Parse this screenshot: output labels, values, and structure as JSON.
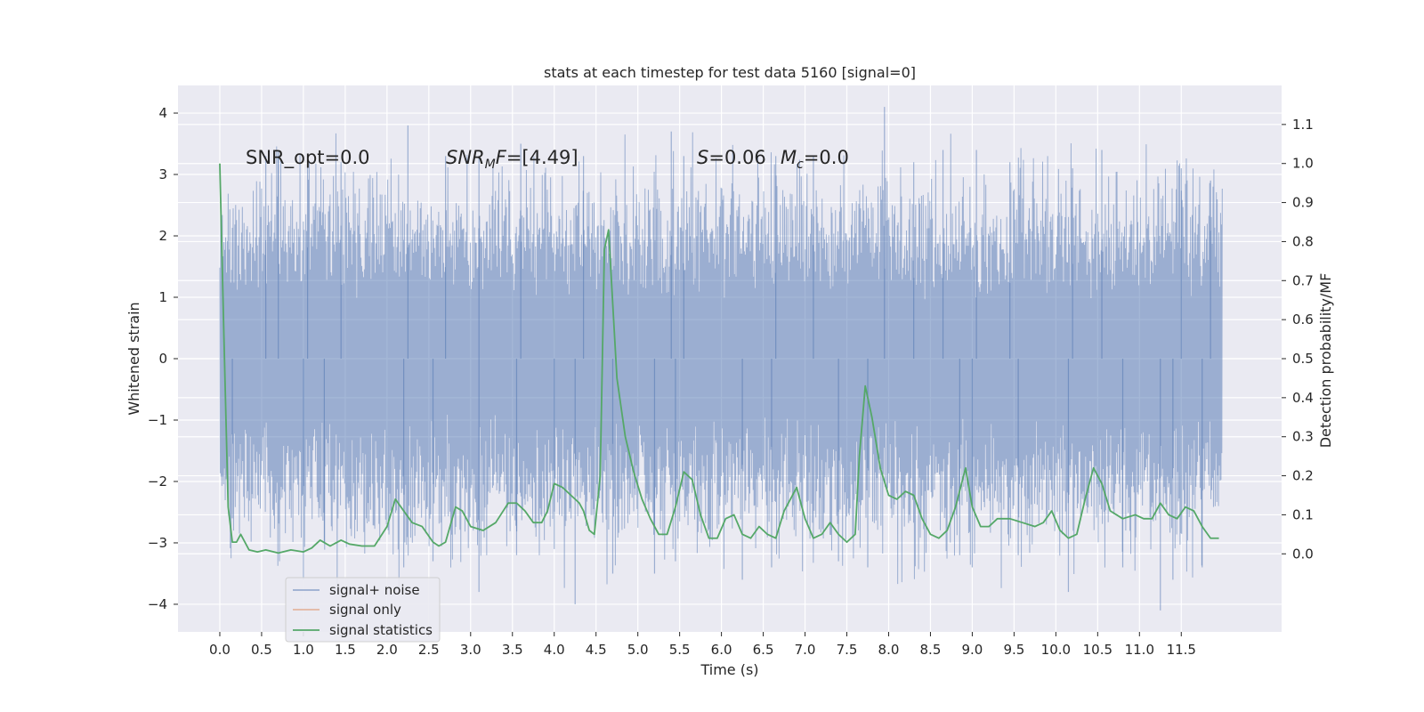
{
  "chart_data": {
    "type": "line",
    "title": "stats at each timestep for test data 5160 [signal=0]",
    "xlabel": "Time (s)",
    "ylabel": "Whitened strain",
    "ylabel_right": "Detection probability/MF",
    "xlim": [
      -0.5,
      12.7
    ],
    "ylim": [
      -4.45,
      4.45
    ],
    "ylim_right": [
      -0.2,
      1.2
    ],
    "x_ticks": [
      0.0,
      0.5,
      1.0,
      1.5,
      2.0,
      2.5,
      3.0,
      3.5,
      4.0,
      4.5,
      5.0,
      5.5,
      6.0,
      6.5,
      7.0,
      7.5,
      8.0,
      8.5,
      9.0,
      9.5,
      10.0,
      10.5,
      11.0,
      11.5
    ],
    "x_tick_labels": [
      "0.0",
      "0.5",
      "1.0",
      "1.5",
      "2.0",
      "2.5",
      "3.0",
      "3.5",
      "4.0",
      "4.5",
      "5.0",
      "5.5",
      "6.0",
      "6.5",
      "7.0",
      "7.5",
      "8.0",
      "8.5",
      "9.0",
      "9.5",
      "10.0",
      "10.5",
      "11.0",
      "11.5"
    ],
    "y_ticks": [
      -4,
      -3,
      -2,
      -1,
      0,
      1,
      2,
      3,
      4
    ],
    "y_tick_labels": [
      "−4",
      "−3",
      "−2",
      "−1",
      "0",
      "1",
      "2",
      "3",
      "4"
    ],
    "y_right_ticks": [
      0.0,
      0.1,
      0.2,
      0.3,
      0.4,
      0.5,
      0.6,
      0.7,
      0.8,
      0.9,
      1.0,
      1.1
    ],
    "y_right_tick_labels": [
      "0.0",
      "0.1",
      "0.2",
      "0.3",
      "0.4",
      "0.5",
      "0.6",
      "0.7",
      "0.8",
      "0.9",
      "1.0",
      "1.1"
    ],
    "grid": true,
    "legend_position": "lower-left",
    "series": [
      {
        "name": "signal+ noise",
        "axis": "left",
        "color": "#4c72b0",
        "opacity": 0.5,
        "x_range": [
          0.0,
          11.99
        ],
        "spikes": [
          [
            0.55,
            3.3
          ],
          [
            0.7,
            3.4
          ],
          [
            1.05,
            3.2
          ],
          [
            1.45,
            3.2
          ],
          [
            2.25,
            3.8
          ],
          [
            2.7,
            3.3
          ],
          [
            3.1,
            3.3
          ],
          [
            3.6,
            3.5
          ],
          [
            4.35,
            3.3
          ],
          [
            5.4,
            3.7
          ],
          [
            5.55,
            3.3
          ],
          [
            6.65,
            3.3
          ],
          [
            7.1,
            3.3
          ],
          [
            7.95,
            4.1
          ],
          [
            8.3,
            3.2
          ],
          [
            8.65,
            3.4
          ],
          [
            9.05,
            3.4
          ],
          [
            9.45,
            3.2
          ],
          [
            10.2,
            3.1
          ],
          [
            10.55,
            3.4
          ],
          [
            11.5,
            3.1
          ],
          [
            11.85,
            2.9
          ],
          [
            0.15,
            -2.6
          ],
          [
            1.0,
            -3.6
          ],
          [
            1.25,
            -3.0
          ],
          [
            2.2,
            -3.4
          ],
          [
            2.55,
            -3.3
          ],
          [
            3.1,
            -3.8
          ],
          [
            3.55,
            -3.2
          ],
          [
            4.0,
            -3.1
          ],
          [
            4.25,
            -4.0
          ],
          [
            4.7,
            -3.5
          ],
          [
            5.2,
            -3.5
          ],
          [
            5.45,
            -3.3
          ],
          [
            6.25,
            -3.6
          ],
          [
            6.6,
            -3.4
          ],
          [
            7.4,
            -3.3
          ],
          [
            7.75,
            -3.4
          ],
          [
            8.85,
            -3.2
          ],
          [
            9.0,
            -3.4
          ],
          [
            9.55,
            -3.2
          ],
          [
            10.15,
            -3.8
          ],
          [
            10.8,
            -3.4
          ],
          [
            11.25,
            -4.1
          ],
          [
            11.4,
            -3.6
          ],
          [
            11.75,
            -3.4
          ]
        ]
      },
      {
        "name": "signal only",
        "axis": "left",
        "color": "#dd8452",
        "x": [
          0.0,
          11.99
        ],
        "y": [
          0.0,
          0.0
        ]
      },
      {
        "name": "signal statistics",
        "axis": "right",
        "color": "#55a868",
        "x": [
          0.0,
          0.05,
          0.1,
          0.15,
          0.2,
          0.25,
          0.35,
          0.45,
          0.55,
          0.7,
          0.85,
          1.0,
          1.1,
          1.2,
          1.32,
          1.45,
          1.55,
          1.7,
          1.85,
          2.0,
          2.1,
          2.2,
          2.3,
          2.42,
          2.55,
          2.62,
          2.7,
          2.82,
          2.9,
          3.0,
          3.15,
          3.3,
          3.45,
          3.55,
          3.65,
          3.75,
          3.85,
          3.92,
          4.0,
          4.1,
          4.2,
          4.3,
          4.35,
          4.42,
          4.48,
          4.55,
          4.6,
          4.65,
          4.75,
          4.85,
          4.95,
          5.05,
          5.15,
          5.25,
          5.35,
          5.45,
          5.55,
          5.65,
          5.75,
          5.85,
          5.95,
          6.05,
          6.15,
          6.25,
          6.35,
          6.45,
          6.55,
          6.65,
          6.75,
          6.9,
          7.0,
          7.1,
          7.2,
          7.3,
          7.4,
          7.5,
          7.6,
          7.65,
          7.72,
          7.8,
          7.9,
          8.0,
          8.1,
          8.2,
          8.3,
          8.4,
          8.5,
          8.6,
          8.7,
          8.8,
          8.92,
          9.0,
          9.1,
          9.2,
          9.3,
          9.45,
          9.6,
          9.75,
          9.85,
          9.95,
          10.05,
          10.15,
          10.25,
          10.35,
          10.45,
          10.55,
          10.65,
          10.8,
          10.95,
          11.05,
          11.15,
          11.25,
          11.35,
          11.45,
          11.55,
          11.65,
          11.75,
          11.85,
          11.95
        ],
        "y": [
          1.0,
          0.55,
          0.12,
          0.03,
          0.03,
          0.05,
          0.01,
          0.005,
          0.01,
          0.002,
          0.01,
          0.005,
          0.015,
          0.035,
          0.02,
          0.035,
          0.025,
          0.02,
          0.02,
          0.07,
          0.14,
          0.11,
          0.08,
          0.07,
          0.03,
          0.02,
          0.03,
          0.12,
          0.11,
          0.07,
          0.06,
          0.08,
          0.13,
          0.13,
          0.11,
          0.08,
          0.08,
          0.11,
          0.18,
          0.17,
          0.15,
          0.13,
          0.11,
          0.06,
          0.05,
          0.2,
          0.78,
          0.83,
          0.45,
          0.3,
          0.21,
          0.14,
          0.09,
          0.05,
          0.05,
          0.12,
          0.21,
          0.19,
          0.1,
          0.04,
          0.04,
          0.09,
          0.1,
          0.05,
          0.04,
          0.07,
          0.05,
          0.04,
          0.11,
          0.17,
          0.09,
          0.04,
          0.05,
          0.08,
          0.05,
          0.03,
          0.05,
          0.25,
          0.43,
          0.35,
          0.22,
          0.15,
          0.14,
          0.16,
          0.15,
          0.09,
          0.05,
          0.04,
          0.06,
          0.12,
          0.22,
          0.12,
          0.07,
          0.07,
          0.09,
          0.09,
          0.08,
          0.07,
          0.08,
          0.11,
          0.06,
          0.04,
          0.05,
          0.14,
          0.22,
          0.18,
          0.11,
          0.09,
          0.1,
          0.09,
          0.09,
          0.13,
          0.1,
          0.09,
          0.12,
          0.11,
          0.07,
          0.04,
          0.04
        ]
      }
    ],
    "annotations": {
      "snr_opt": "SNR_opt=0.0",
      "snr_mf_main": "SNR",
      "snr_mf_sub": "M",
      "snr_mf_rest": "F=[4.49]",
      "s_main": "S",
      "s_rest": "=0.06",
      "mc_main": "M",
      "mc_sub": "c",
      "mc_rest": "=0.0"
    }
  }
}
